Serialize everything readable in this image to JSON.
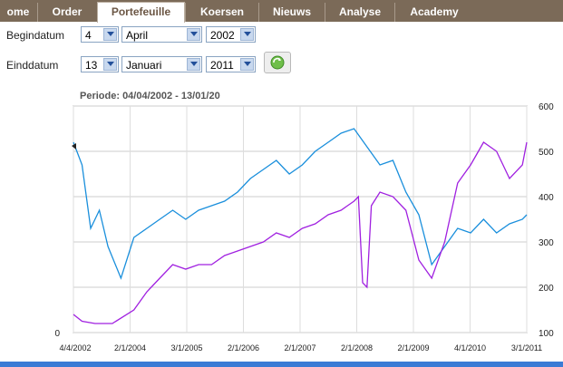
{
  "nav": {
    "tabs": [
      {
        "label": "ome",
        "active": false
      },
      {
        "label": "Order",
        "active": false
      },
      {
        "label": "Portefeuille",
        "active": true
      },
      {
        "label": "Koersen",
        "active": false
      },
      {
        "label": "Nieuws",
        "active": false
      },
      {
        "label": "Analyse",
        "active": false
      },
      {
        "label": "Academy",
        "active": false
      }
    ]
  },
  "form": {
    "begin_label": "Begindatum",
    "begin_day": "4",
    "begin_month": "April",
    "begin_year": "2002",
    "end_label": "Einddatum",
    "end_day": "13",
    "end_month": "Januari",
    "end_year": "2011"
  },
  "periode": "Periode:   04/04/2002 - 13/01/20",
  "colors": {
    "nav": "#7b6a58",
    "blue_series": "#1a8fdc",
    "purple_series": "#a020e0"
  },
  "chart_data": {
    "type": "line",
    "x_ticks": [
      "4/4/2002",
      "2/1/2004",
      "3/1/2005",
      "2/1/2006",
      "2/1/2007",
      "2/1/2008",
      "2/1/2009",
      "4/1/2010",
      "3/1/2011"
    ],
    "y_left_ticks": [
      "0",
      "",
      "",
      "",
      "",
      ""
    ],
    "y_right_ticks": [
      "100",
      "200",
      "300",
      "400",
      "500",
      "600"
    ],
    "ylim_right": [
      100,
      600
    ],
    "grid": true,
    "series": [
      {
        "name": "",
        "color": "#1a8fdc",
        "axis": "right",
        "x": [
          "2002-04",
          "2002-06",
          "2002-08",
          "2002-10",
          "2002-12",
          "2003-03",
          "2003-06",
          "2003-09",
          "2003-12",
          "2004-03",
          "2004-06",
          "2004-09",
          "2004-12",
          "2005-03",
          "2005-06",
          "2005-09",
          "2005-12",
          "2006-03",
          "2006-06",
          "2006-09",
          "2006-12",
          "2007-03",
          "2007-06",
          "2007-09",
          "2007-12",
          "2008-03",
          "2008-06",
          "2008-09",
          "2008-12",
          "2009-03",
          "2009-06",
          "2009-09",
          "2009-12",
          "2010-03",
          "2010-06",
          "2010-09",
          "2010-12",
          "2011-01"
        ],
        "values": [
          520,
          470,
          330,
          370,
          290,
          220,
          310,
          330,
          350,
          370,
          350,
          370,
          380,
          390,
          410,
          440,
          460,
          480,
          450,
          470,
          500,
          520,
          540,
          550,
          510,
          470,
          480,
          410,
          360,
          250,
          290,
          330,
          320,
          350,
          320,
          340,
          350,
          360
        ]
      },
      {
        "name": "",
        "color": "#a020e0",
        "axis": "right",
        "x": [
          "2002-04",
          "2002-06",
          "2002-09",
          "2003-01",
          "2003-06",
          "2003-09",
          "2003-12",
          "2004-03",
          "2004-06",
          "2004-09",
          "2004-12",
          "2005-03",
          "2005-06",
          "2005-09",
          "2005-12",
          "2006-03",
          "2006-06",
          "2006-09",
          "2006-12",
          "2007-03",
          "2007-06",
          "2007-09",
          "2007-10",
          "2007-11",
          "2007-12",
          "2008-01",
          "2008-03",
          "2008-06",
          "2008-09",
          "2008-12",
          "2009-03",
          "2009-06",
          "2009-09",
          "2009-12",
          "2010-03",
          "2010-06",
          "2010-09",
          "2010-12",
          "2011-01"
        ],
        "values": [
          140,
          125,
          120,
          120,
          150,
          190,
          220,
          250,
          240,
          250,
          250,
          270,
          280,
          290,
          300,
          320,
          310,
          330,
          340,
          360,
          370,
          390,
          400,
          210,
          200,
          380,
          410,
          400,
          370,
          260,
          220,
          300,
          430,
          470,
          520,
          500,
          440,
          470,
          520
        ]
      }
    ]
  }
}
